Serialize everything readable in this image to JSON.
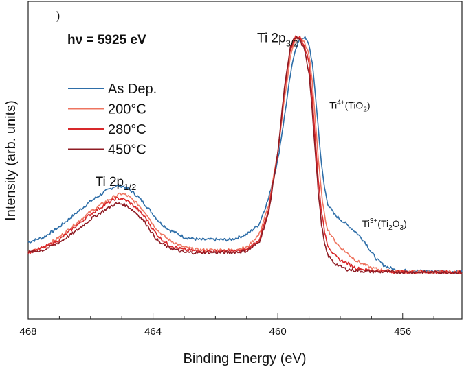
{
  "chart_data": {
    "type": "line",
    "panel_label": ")",
    "title": "hν = 5925 eV",
    "xlabel": "Binding Energy (eV)",
    "ylabel": "Intensity (arb. units)",
    "xlim": [
      468,
      454.1
    ],
    "ylim": [
      0,
      1.1
    ],
    "x_ticks": [
      "468",
      "464",
      "460",
      "456"
    ],
    "x_tick_values": [
      468,
      464,
      460,
      456
    ],
    "legend": {
      "position": "left-middle",
      "entries": [
        "As Dep.",
        "200°C",
        "280°C",
        "450°C"
      ]
    },
    "annotations": {
      "peak_3_2": {
        "base": "Ti 2p",
        "sub": "3/2",
        "x": 459.35,
        "y": 0.98
      },
      "peak_1_2": {
        "base": "Ti 2p",
        "sub": "1/2",
        "x": 465.85,
        "y": 0.42
      },
      "ti4": {
        "base": "Ti",
        "sup": "4+",
        "mid": "(TiO",
        "sub": "2",
        "tail": ")",
        "x": 458.35,
        "y": 0.72
      },
      "ti3": {
        "base": "Ti",
        "sup": "3+",
        "mid": "(Ti",
        "sub": "2",
        "mid2": "O",
        "sub2": "3",
        "tail": ")",
        "x": 457.3,
        "y": 0.26
      }
    },
    "series": [
      {
        "name": "As Dep.",
        "color": "#2e6ea8",
        "x": [
          468.0,
          467.5,
          467.0,
          466.5,
          466.0,
          465.5,
          465.2,
          465.0,
          464.8,
          464.5,
          464.2,
          464.0,
          463.8,
          463.5,
          463.0,
          462.5,
          462.0,
          461.5,
          461.0,
          460.6,
          460.3,
          460.0,
          459.8,
          459.6,
          459.45,
          459.3,
          459.15,
          459.0,
          458.9,
          458.8,
          458.7,
          458.6,
          458.5,
          458.4,
          458.2,
          458.0,
          457.8,
          457.5,
          457.2,
          457.0,
          456.8,
          456.6,
          456.4,
          456.2,
          456.0,
          455.5,
          455.0,
          454.5,
          454.1
        ],
        "y": [
          0.2,
          0.22,
          0.26,
          0.31,
          0.36,
          0.4,
          0.42,
          0.42,
          0.41,
          0.38,
          0.34,
          0.31,
          0.28,
          0.25,
          0.22,
          0.21,
          0.21,
          0.21,
          0.23,
          0.27,
          0.37,
          0.52,
          0.68,
          0.85,
          0.95,
          0.99,
          1.0,
          0.97,
          0.9,
          0.78,
          0.64,
          0.5,
          0.41,
          0.35,
          0.31,
          0.29,
          0.27,
          0.24,
          0.2,
          0.16,
          0.13,
          0.11,
          0.1,
          0.09,
          0.09,
          0.088,
          0.087,
          0.086,
          0.085
        ]
      },
      {
        "name": "200°C",
        "color": "#ee7560",
        "x": [
          468.0,
          467.5,
          467.0,
          466.5,
          466.0,
          465.5,
          465.2,
          465.0,
          464.8,
          464.5,
          464.2,
          464.0,
          463.8,
          463.5,
          463.0,
          462.5,
          462.0,
          461.5,
          461.0,
          460.6,
          460.3,
          460.0,
          459.8,
          459.6,
          459.45,
          459.3,
          459.15,
          459.0,
          458.9,
          458.8,
          458.7,
          458.6,
          458.5,
          458.4,
          458.2,
          458.0,
          457.8,
          457.5,
          457.2,
          457.0,
          456.8,
          456.6,
          456.4,
          456.2,
          456.0,
          455.5,
          455.0,
          454.5,
          454.1
        ],
        "y": [
          0.16,
          0.18,
          0.22,
          0.27,
          0.32,
          0.36,
          0.38,
          0.39,
          0.38,
          0.35,
          0.31,
          0.27,
          0.24,
          0.21,
          0.18,
          0.17,
          0.17,
          0.17,
          0.18,
          0.23,
          0.34,
          0.55,
          0.75,
          0.92,
          0.99,
          1.0,
          0.98,
          0.93,
          0.83,
          0.68,
          0.52,
          0.39,
          0.3,
          0.25,
          0.21,
          0.18,
          0.16,
          0.13,
          0.11,
          0.1,
          0.095,
          0.09,
          0.088,
          0.087,
          0.086,
          0.085,
          0.084,
          0.084,
          0.084
        ]
      },
      {
        "name": "280°C",
        "color": "#d8282a",
        "x": [
          468.0,
          467.5,
          467.0,
          466.5,
          466.0,
          465.5,
          465.2,
          465.0,
          464.8,
          464.5,
          464.2,
          464.0,
          463.8,
          463.5,
          463.0,
          462.5,
          462.0,
          461.5,
          461.0,
          460.6,
          460.3,
          460.0,
          459.8,
          459.6,
          459.45,
          459.3,
          459.15,
          459.0,
          458.9,
          458.8,
          458.7,
          458.6,
          458.5,
          458.4,
          458.2,
          458.0,
          457.8,
          457.5,
          457.2,
          457.0,
          456.8,
          456.6,
          456.4,
          456.2,
          456.0,
          455.5,
          455.0,
          454.5,
          454.1
        ],
        "y": [
          0.16,
          0.18,
          0.21,
          0.26,
          0.31,
          0.35,
          0.37,
          0.37,
          0.36,
          0.33,
          0.29,
          0.25,
          0.22,
          0.19,
          0.17,
          0.165,
          0.165,
          0.165,
          0.17,
          0.21,
          0.32,
          0.55,
          0.78,
          0.95,
          1.0,
          1.0,
          0.97,
          0.9,
          0.77,
          0.6,
          0.44,
          0.32,
          0.24,
          0.19,
          0.15,
          0.13,
          0.12,
          0.1,
          0.093,
          0.09,
          0.088,
          0.087,
          0.086,
          0.085,
          0.085,
          0.084,
          0.084,
          0.083,
          0.083
        ]
      },
      {
        "name": "450°C",
        "color": "#8f1c24",
        "x": [
          468.0,
          467.5,
          467.0,
          466.5,
          466.0,
          465.5,
          465.2,
          465.0,
          464.8,
          464.5,
          464.2,
          464.0,
          463.8,
          463.5,
          463.0,
          462.5,
          462.0,
          461.5,
          461.0,
          460.6,
          460.3,
          460.0,
          459.8,
          459.6,
          459.45,
          459.3,
          459.15,
          459.0,
          458.9,
          458.8,
          458.7,
          458.6,
          458.5,
          458.4,
          458.2,
          458.0,
          457.8,
          457.5,
          457.2,
          457.0,
          456.8,
          456.6,
          456.4,
          456.2,
          456.0,
          455.5,
          455.0,
          454.5,
          454.1
        ],
        "y": [
          0.16,
          0.17,
          0.2,
          0.24,
          0.29,
          0.33,
          0.35,
          0.35,
          0.34,
          0.31,
          0.27,
          0.23,
          0.2,
          0.18,
          0.16,
          0.16,
          0.16,
          0.16,
          0.165,
          0.2,
          0.31,
          0.55,
          0.79,
          0.96,
          1.0,
          0.99,
          0.95,
          0.86,
          0.72,
          0.55,
          0.39,
          0.27,
          0.19,
          0.15,
          0.12,
          0.105,
          0.095,
          0.09,
          0.087,
          0.086,
          0.085,
          0.085,
          0.084,
          0.084,
          0.084,
          0.083,
          0.083,
          0.083,
          0.083
        ]
      }
    ]
  }
}
